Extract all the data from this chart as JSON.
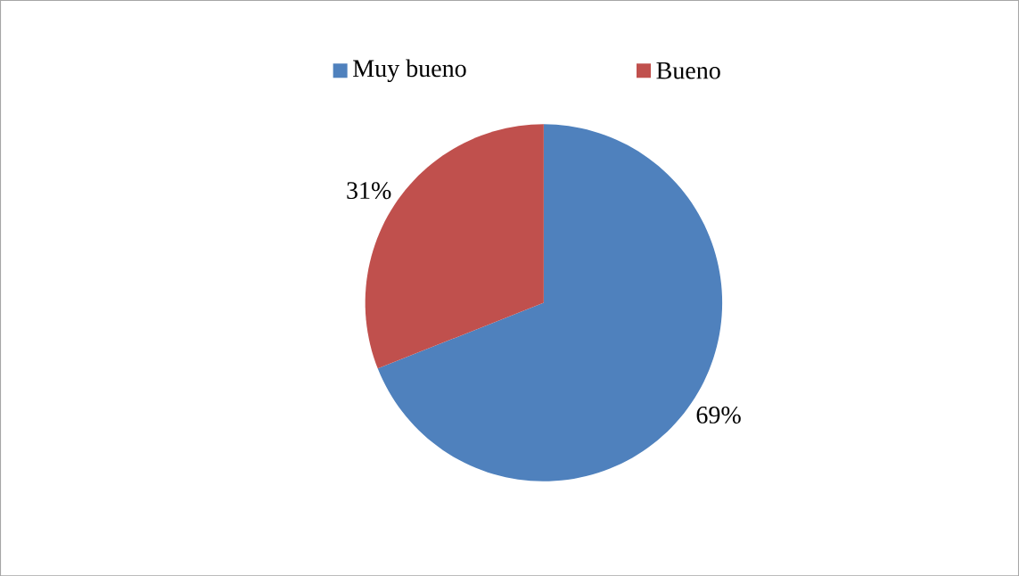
{
  "chart_data": {
    "type": "pie",
    "categories": [
      "Muy bueno",
      "Bueno"
    ],
    "values": [
      69,
      31
    ],
    "colors": [
      "#4f81bd",
      "#c0504d"
    ],
    "value_labels": [
      "69%",
      "31%"
    ],
    "legend": "top"
  }
}
